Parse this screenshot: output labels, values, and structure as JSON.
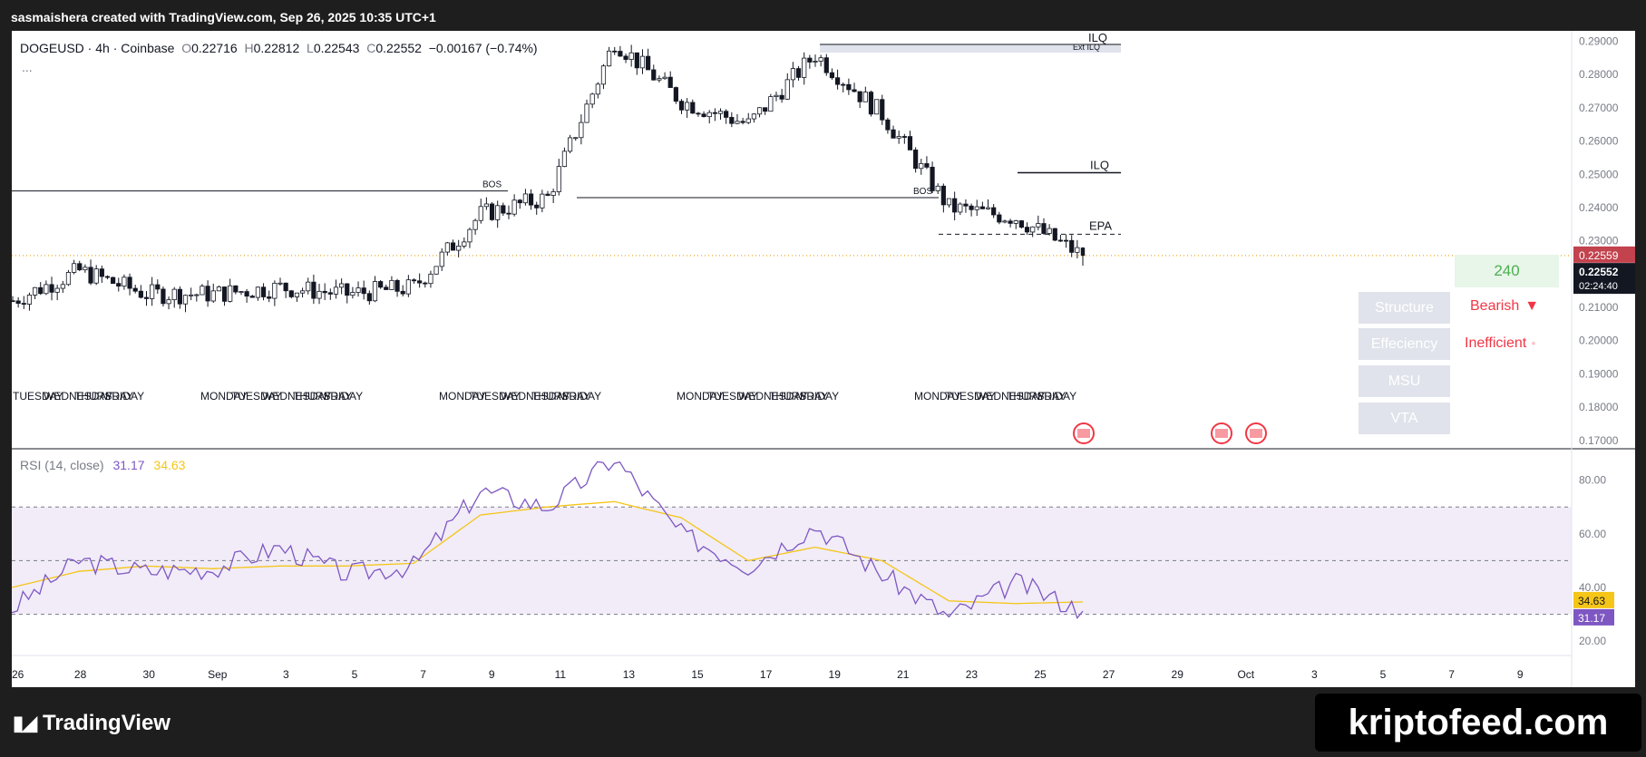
{
  "header": {
    "credit": "sasmaishera created with TradingView.com, Sep 26, 2025 10:35 UTC+1"
  },
  "legend": {
    "symbol": "DOGEUSD",
    "interval": "4h",
    "exchange": "Coinbase",
    "open_label": "O",
    "open": "0.22716",
    "high_label": "H",
    "high": "0.22812",
    "low_label": "L",
    "low": "0.22543",
    "close_label": "C",
    "close": "0.22552",
    "change": "−0.00167 (−0.74%)",
    "more": "..."
  },
  "price_axis": {
    "ticks": [
      "0.29000",
      "0.28000",
      "0.27000",
      "0.26000",
      "0.25000",
      "0.24000",
      "0.23000",
      "0.22000",
      "0.21000",
      "0.20000",
      "0.19000",
      "0.18000",
      "0.17000"
    ],
    "last_price_tag": "0.22559",
    "current_price_tag": "0.22552",
    "countdown": "02:24:40",
    "tag_colors": {
      "last": "#c2424e",
      "current": "#131722"
    }
  },
  "annotations": {
    "bos_1": "BOS",
    "bos_2": "BOS",
    "ilq_top": "ILQ",
    "ilq_top_sub": "Ext ILQ",
    "ilq_mid": "ILQ",
    "epa": "EPA"
  },
  "day_labels": [
    "TUESDAY",
    "WEDNESDAY",
    "THURSDAY",
    "FRIDAY",
    "MONDAY",
    "TUESDAY",
    "WEDNESDAY",
    "THURSDAY",
    "FRIDAY",
    "MONDAY",
    "TUESDAY",
    "WEDNESDAY",
    "THURSDAY",
    "FRIDAY",
    "MONDAY",
    "TUESDAY",
    "WEDNESDAY",
    "THURSDAY",
    "FRIDAY",
    "MONDAY",
    "TUESDAY",
    "WEDNESDAY",
    "THURSDAY",
    "FRIDAY"
  ],
  "indicator_panel": {
    "timeframe": "240",
    "rows": [
      {
        "label": "Structure",
        "value": "Bearish",
        "icon": "triangle-down-icon"
      },
      {
        "label": "Effeciency",
        "value": "Inefficient",
        "icon": "square-icon"
      },
      {
        "label": "MSU",
        "value": ""
      },
      {
        "label": "VTA",
        "value": ""
      }
    ],
    "colors": {
      "bearish": "#f23645",
      "timeframe": "#4caf50"
    }
  },
  "rsi": {
    "title": "RSI (14, close)",
    "value": "31.17",
    "ma_value": "34.63",
    "ticks": [
      "80.00",
      "60.00",
      "40.00",
      "20.00"
    ],
    "colors": {
      "rsi": "#7e57c2",
      "ma": "#f5c518",
      "band": "#ede7f6"
    }
  },
  "time_axis": {
    "ticks": [
      "26",
      "28",
      "30",
      "Sep",
      "3",
      "5",
      "7",
      "9",
      "11",
      "13",
      "15",
      "17",
      "19",
      "21",
      "23",
      "25",
      "27",
      "29",
      "Oct",
      "3",
      "5",
      "7",
      "9"
    ]
  },
  "footer": {
    "brand": "TradingView",
    "watermark": "kriptofeed.com"
  },
  "chart_data": [
    {
      "type": "candlestick",
      "symbol": "DOGEUSD",
      "interval": "4h",
      "x": [
        "Aug 26",
        "Aug 28",
        "Aug 30",
        "Sep 1",
        "Sep 3",
        "Sep 5",
        "Sep 7",
        "Sep 9",
        "Sep 11",
        "Sep 13",
        "Sep 15",
        "Sep 17",
        "Sep 19",
        "Sep 21",
        "Sep 23",
        "Sep 25",
        "Sep 26"
      ],
      "close": [
        0.212,
        0.221,
        0.214,
        0.214,
        0.216,
        0.214,
        0.216,
        0.238,
        0.243,
        0.29,
        0.272,
        0.265,
        0.286,
        0.268,
        0.24,
        0.237,
        0.2255
      ],
      "high": [
        0.216,
        0.224,
        0.218,
        0.218,
        0.22,
        0.218,
        0.22,
        0.245,
        0.248,
        0.292,
        0.288,
        0.268,
        0.289,
        0.27,
        0.247,
        0.251,
        0.2281
      ],
      "low": [
        0.209,
        0.213,
        0.209,
        0.207,
        0.21,
        0.209,
        0.211,
        0.216,
        0.236,
        0.262,
        0.264,
        0.26,
        0.276,
        0.26,
        0.232,
        0.225,
        0.2225
      ],
      "ylim": [
        0.165,
        0.292
      ],
      "levels": {
        "BOS_1": 0.245,
        "BOS_2": 0.243,
        "ILQ_top": 0.2885,
        "ILQ_mid": 0.2505,
        "EPA": 0.232
      }
    },
    {
      "type": "line",
      "title": "RSI (14, close)",
      "x": [
        "Aug 26",
        "Aug 28",
        "Aug 30",
        "Sep 1",
        "Sep 3",
        "Sep 5",
        "Sep 7",
        "Sep 9",
        "Sep 11",
        "Sep 13",
        "Sep 15",
        "Sep 17",
        "Sep 19",
        "Sep 21",
        "Sep 23",
        "Sep 25",
        "Sep 26"
      ],
      "series": [
        {
          "name": "RSI",
          "values": [
            32,
            50,
            46,
            47,
            55,
            45,
            48,
            76,
            70,
            88,
            60,
            48,
            63,
            45,
            29,
            42,
            31.17
          ]
        },
        {
          "name": "MA",
          "values": [
            40,
            46,
            48,
            47,
            48,
            48,
            49,
            67,
            70,
            72,
            66,
            50,
            55,
            50,
            35,
            34,
            34.63
          ]
        }
      ],
      "ylim": [
        15,
        90
      ],
      "levels": [
        70,
        50,
        30
      ]
    }
  ]
}
